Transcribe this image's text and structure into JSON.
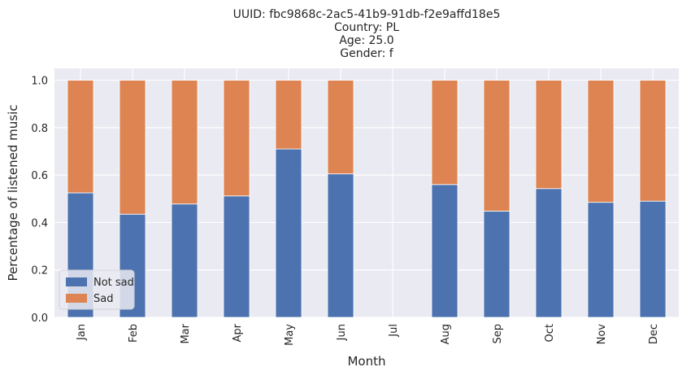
{
  "chart_data": {
    "type": "bar",
    "stacked": true,
    "title_lines": [
      "UUID: fbc9868c-2ac5-41b9-91db-f2e9affd18e5",
      "Country: PL",
      "Age: 25.0",
      "Gender: f"
    ],
    "xlabel": "Month",
    "ylabel": "Percentage of listened music",
    "ylim": [
      0,
      1.05
    ],
    "yticks": [
      "0.0",
      "0.2",
      "0.4",
      "0.6",
      "0.8",
      "1.0"
    ],
    "categories": [
      "Jan",
      "Feb",
      "Mar",
      "Apr",
      "May",
      "Jun",
      "Jul",
      "Aug",
      "Sep",
      "Oct",
      "Nov",
      "Dec"
    ],
    "series": [
      {
        "name": "Not sad",
        "color": "#4c72b0",
        "values": [
          0.525,
          0.435,
          0.478,
          0.512,
          0.71,
          0.605,
          null,
          0.56,
          0.448,
          0.543,
          0.485,
          0.49
        ]
      },
      {
        "name": "Sad",
        "color": "#dd8452",
        "values": [
          0.475,
          0.565,
          0.522,
          0.488,
          0.29,
          0.395,
          null,
          0.44,
          0.552,
          0.457,
          0.515,
          0.51
        ]
      }
    ],
    "grid": true,
    "legend_position": "bottom-left",
    "plot_background": "#eaeaf2"
  }
}
